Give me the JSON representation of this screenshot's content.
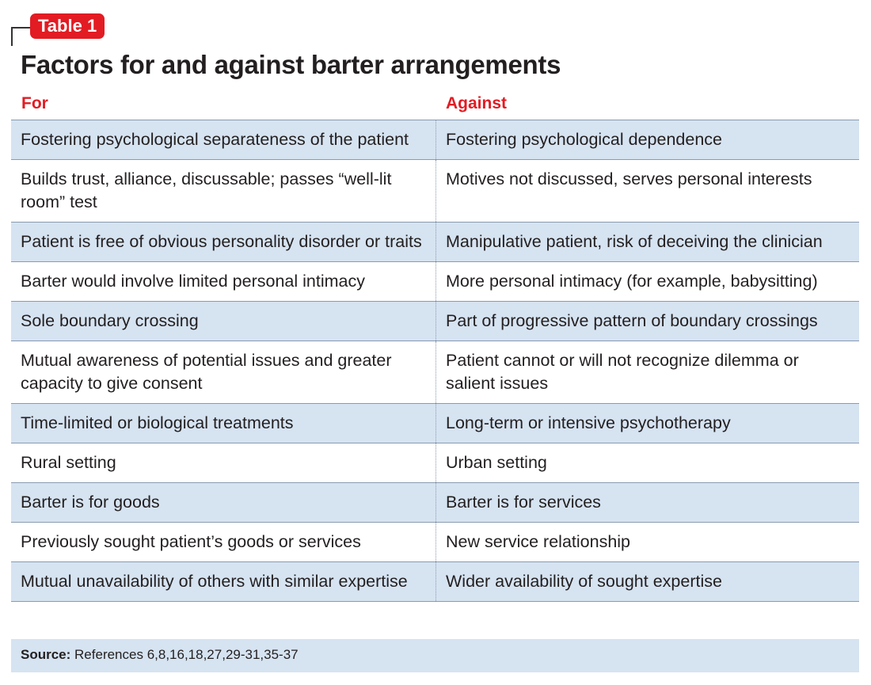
{
  "badge": "Table 1",
  "title": "Factors for and against barter arrangements",
  "headers": {
    "for": "For",
    "against": "Against"
  },
  "rows": [
    {
      "for": "Fostering psychological separateness of the patient",
      "against": "Fostering psychological dependence"
    },
    {
      "for": "Builds trust, alliance, discussable; passes “well-lit room” test",
      "against": "Motives not discussed, serves personal interests"
    },
    {
      "for": "Patient is free of obvious personality disorder or traits",
      "against": "Manipulative patient, risk of deceiving the clinician"
    },
    {
      "for": "Barter would involve limited personal intimacy",
      "against": "More personal intimacy (for example, babysitting)"
    },
    {
      "for": "Sole boundary crossing",
      "against": "Part of progressive pattern of boundary crossings"
    },
    {
      "for": "Mutual awareness of potential issues and greater capacity to give consent",
      "against": "Patient cannot or will not recognize dilemma or salient issues"
    },
    {
      "for": "Time-limited or biological treatments",
      "against": "Long-term or intensive psychotherapy"
    },
    {
      "for": "Rural setting",
      "against": "Urban setting"
    },
    {
      "for": "Barter is for goods",
      "against": "Barter is for services"
    },
    {
      "for": "Previously sought patient’s goods or services",
      "against": "New service relationship"
    },
    {
      "for": "Mutual unavailability of others with similar expertise",
      "against": "Wider availability of sought expertise"
    }
  ],
  "source": {
    "label": "Source:",
    "text": "References 6,8,16,18,27,29-31,35-37"
  },
  "colors": {
    "accent": "#e31b23",
    "row_shade": "#d6e3f1",
    "rule": "#8a9bb0"
  }
}
